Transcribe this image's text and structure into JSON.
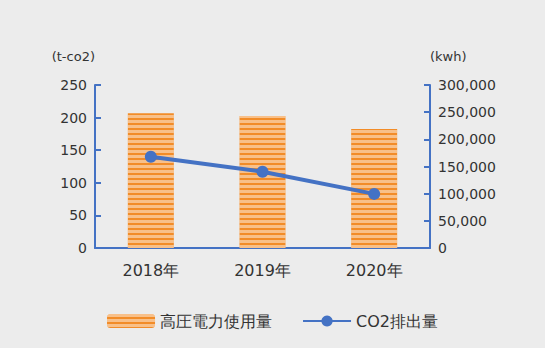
{
  "chart_data": {
    "type": "bar",
    "categories": [
      "2018年",
      "2019年",
      "2020年"
    ],
    "series": [
      {
        "name": "高圧電力使用量",
        "type": "bar",
        "color": "#f28c28",
        "axis": "y2",
        "values": [
          248000,
          243000,
          219000
        ]
      },
      {
        "name": "CO2排出量",
        "type": "line",
        "color": "#4472c4",
        "marker": "circle",
        "values": [
          140,
          117,
          83
        ]
      }
    ],
    "ylabel": "(t-co2)",
    "y2label": "(kwh)",
    "ylim": [
      0,
      250
    ],
    "yticks": [
      0,
      50,
      100,
      150,
      200,
      250
    ],
    "y2lim": [
      0,
      300000
    ],
    "y2ticks": [
      0,
      50000,
      100000,
      150000,
      200000,
      250000,
      300000
    ],
    "grid": false,
    "legend": "bottom"
  }
}
